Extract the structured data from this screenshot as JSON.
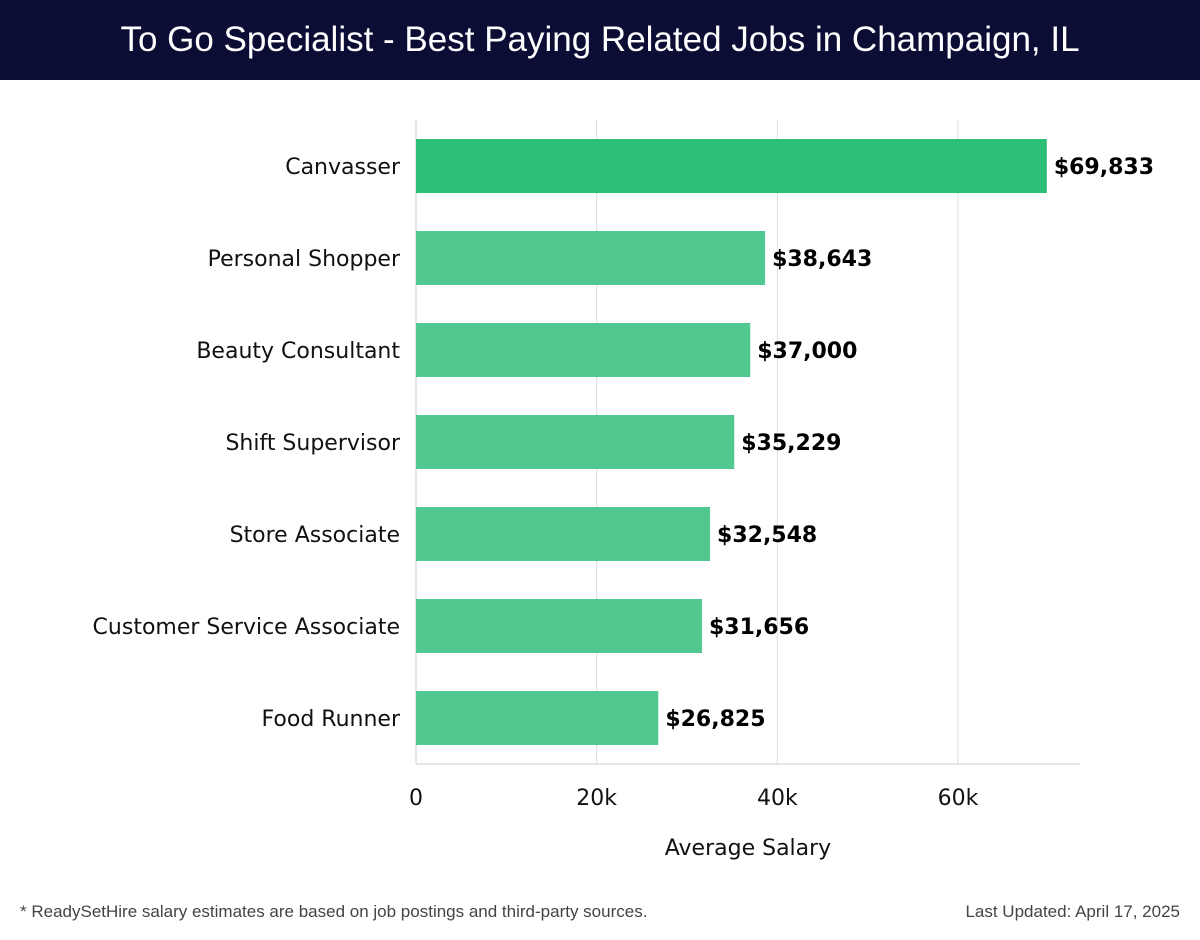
{
  "header": {
    "title": "To Go Specialist - Best Paying Related Jobs in Champaign, IL"
  },
  "chart_data": {
    "type": "bar",
    "orientation": "horizontal",
    "title": "To Go Specialist - Best Paying Related Jobs in Champaign, IL",
    "categories": [
      "Canvasser",
      "Personal Shopper",
      "Beauty Consultant",
      "Shift Supervisor",
      "Store Associate",
      "Customer Service Associate",
      "Food Runner"
    ],
    "values": [
      69833,
      38643,
      37000,
      35229,
      32548,
      31656,
      26825
    ],
    "value_labels": [
      "$69,833",
      "$38,643",
      "$37,000",
      "$35,229",
      "$32,548",
      "$31,656",
      "$26,825"
    ],
    "xlabel": "Average Salary",
    "ylabel": "",
    "xlim": [
      0,
      73500
    ],
    "xticks": [
      0,
      20000,
      40000,
      60000
    ],
    "xtick_labels": [
      "0",
      "20k",
      "40k",
      "60k"
    ],
    "grid": true,
    "colors": {
      "highlight": "#2dbe78",
      "default": "#50c890",
      "header_bg": "#0b0d35"
    }
  },
  "footer": {
    "note": "* ReadySetHire salary estimates are based on job postings and third-party sources.",
    "updated": "Last Updated: April 17, 2025"
  }
}
